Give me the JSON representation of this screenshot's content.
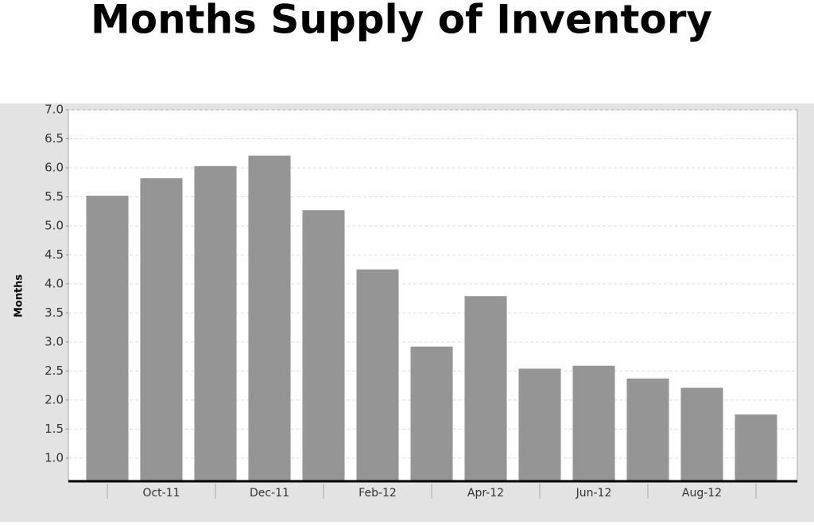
{
  "chart_data": {
    "type": "bar",
    "title": "Months Supply of Inventory",
    "y_label": "Months",
    "categories": [
      null,
      "Oct-11",
      null,
      "Dec-11",
      null,
      "Feb-12",
      null,
      "Apr-12",
      null,
      "Jun-12",
      null,
      "Aug-12",
      null
    ],
    "values": [
      5.52,
      5.82,
      6.03,
      6.21,
      5.27,
      4.25,
      2.92,
      3.79,
      2.54,
      2.59,
      2.37,
      2.21,
      1.75
    ],
    "color": "#959595",
    "ylim": [
      0.6,
      7.0
    ],
    "yticks": [
      {
        "value": 1,
        "label": "1.0"
      },
      {
        "value": 1.5,
        "label": "1.5"
      },
      {
        "value": 2,
        "label": "2.0"
      },
      {
        "value": 2.5,
        "label": "2.5"
      },
      {
        "value": 3,
        "label": "3.0"
      },
      {
        "value": 3.5,
        "label": "3.5"
      },
      {
        "value": 4,
        "label": "4.0"
      },
      {
        "value": 4.5,
        "label": "4.5"
      },
      {
        "value": 5,
        "label": "5.0"
      },
      {
        "value": 5.5,
        "label": "5.5"
      },
      {
        "value": 6,
        "label": "6.0"
      },
      {
        "value": 6.5,
        "label": "6.5"
      },
      {
        "value": 7,
        "label": "7.0"
      }
    ],
    "grid": true
  }
}
